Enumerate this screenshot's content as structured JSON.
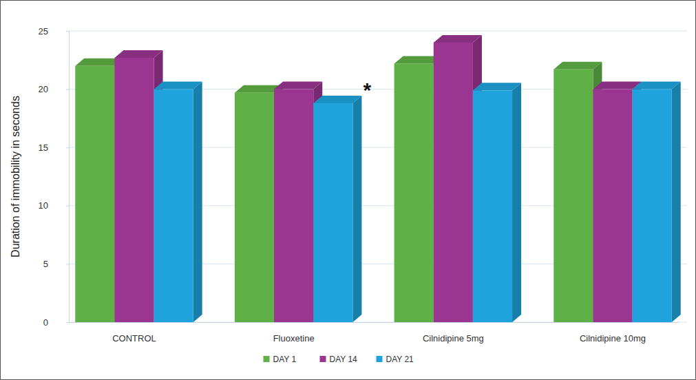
{
  "chart_data": {
    "type": "bar",
    "y_label": "Duration of immobility in seconds",
    "categories": [
      "CONTROL",
      "Fluoxetine",
      "Cilnidipine 5mg",
      "Cilnidipine 10mg"
    ],
    "series": [
      {
        "name": "DAY 1",
        "color": "#5fb046",
        "values": [
          22,
          19.7,
          22.2,
          21.7
        ]
      },
      {
        "name": "DAY 14",
        "color": "#9a3592",
        "values": [
          22.7,
          20,
          24,
          20
        ]
      },
      {
        "name": "DAY 21",
        "color": "#1fa3dc",
        "values": [
          20,
          18.8,
          19.9,
          20
        ]
      }
    ],
    "ylim": [
      0,
      25
    ],
    "yticks": [
      0,
      5,
      10,
      15,
      20,
      25
    ],
    "grid": true,
    "legend": "bottom",
    "annotations": [
      {
        "text": "*",
        "category": "Fluoxetine",
        "series": "DAY 21"
      }
    ]
  }
}
